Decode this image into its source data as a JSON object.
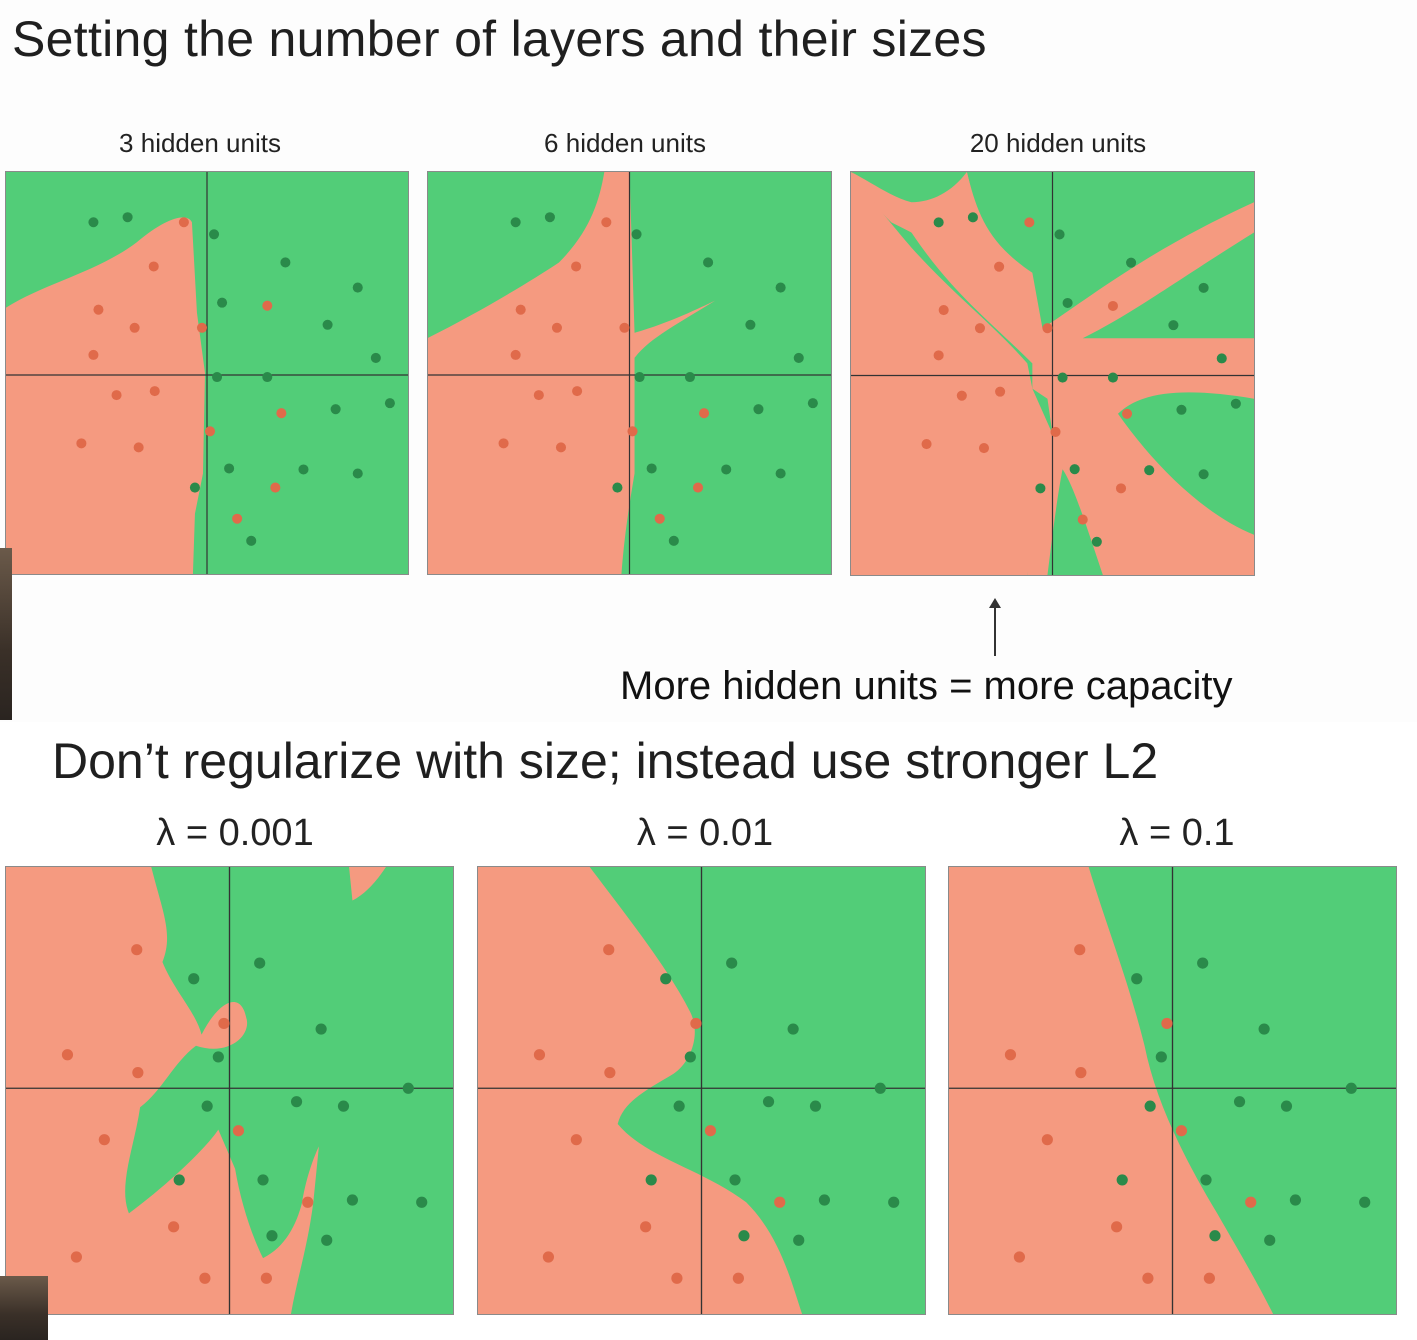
{
  "slide_top": {
    "title": "Setting the number of layers and their sizes",
    "panels": [
      {
        "label": "3 hidden units"
      },
      {
        "label": "6 hidden units"
      },
      {
        "label": "20 hidden units"
      }
    ],
    "caption": "More hidden units = more capacity"
  },
  "slide_bottom": {
    "title": "Don’t regularize with size; instead use stronger L2",
    "panels": [
      {
        "label": "λ = 0.001"
      },
      {
        "label": "λ = 0.01"
      },
      {
        "label": "λ = 0.1"
      }
    ]
  },
  "colors": {
    "green_region": "#52cd78",
    "red_region": "#f59a80",
    "green_point": "#2a8a4a",
    "red_point": "#e06a4a",
    "axis": "#333333"
  }
}
